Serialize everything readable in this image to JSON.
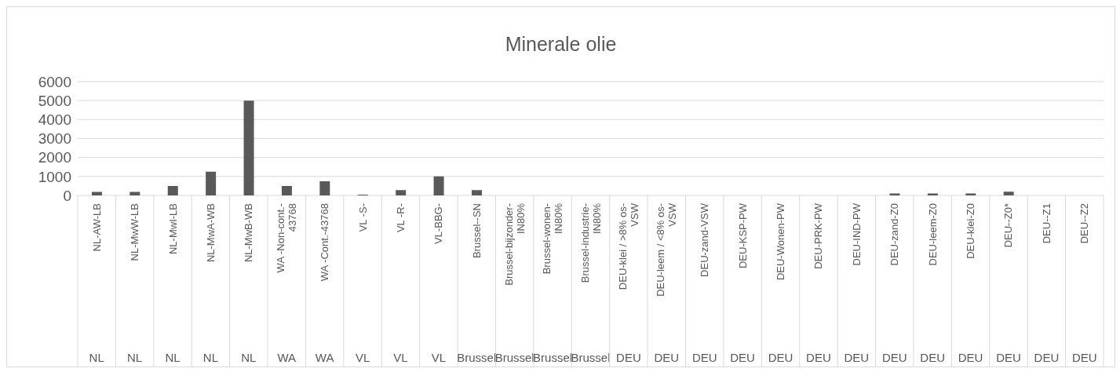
{
  "chart_data": {
    "type": "bar",
    "title": "Minerale olie",
    "categories": [
      "NL-AW-LB",
      "NL-MwW-LB",
      "NL-MwI-LB",
      "NL-MwA-WB",
      "NL-MwB-WB",
      "WA -Non-cont.-43768",
      "WA -Cont.-43768",
      "VL -S-",
      "VL -R-",
      "VL-BBG-",
      "Brussel--SN",
      "Brussel-bijzonder-IN80%",
      "Brussel-wonen-IN80%",
      "Brussel-industrie-IN80%",
      "DEU-klei / >8% os-VSW",
      "DEU-leem / <8% os-VSW",
      "DEU-zand-VSW",
      "DEU-KSP-PW",
      "DEU-Wonen-PW",
      "DEU-PRK-PW",
      "DEU-IND-PW",
      "DEU-zand-Z0",
      "DEU-leem-Z0",
      "DEU-klei-Z0",
      "DEU--Z0*",
      "DEU--Z1",
      "DEU--Z2"
    ],
    "values": [
      190,
      190,
      500,
      1250,
      5000,
      500,
      750,
      40,
      280,
      1000,
      280,
      null,
      null,
      null,
      null,
      null,
      null,
      null,
      null,
      null,
      null,
      100,
      100,
      100,
      200,
      null,
      null
    ],
    "color": "#595959",
    "ylim": [
      0,
      6000
    ],
    "yticks": [
      0,
      1000,
      2000,
      3000,
      4000,
      5000,
      6000
    ],
    "grid": "y",
    "legend": false,
    "annotations": [
      "NL",
      "NL",
      "NL",
      "NL",
      "NL",
      "WA",
      "WA",
      "VL",
      "VL",
      "VL",
      "Brussel",
      "Brussel",
      "Brussel",
      "Brussel",
      "DEU",
      "DEU",
      "DEU",
      "DEU",
      "DEU",
      "DEU",
      "DEU",
      "DEU",
      "DEU",
      "DEU",
      "DEU",
      "DEU",
      "DEU"
    ]
  }
}
